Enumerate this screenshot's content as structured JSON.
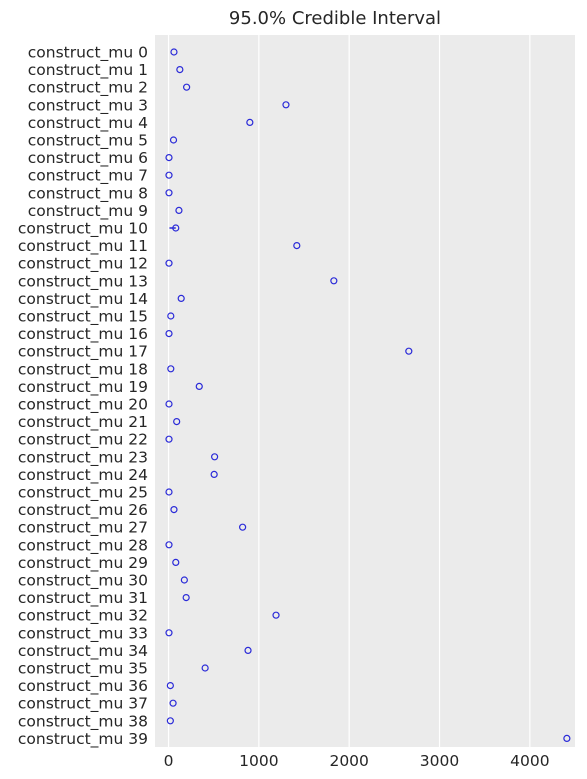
{
  "chart_data": {
    "type": "scatter",
    "title": "95.0% Credible Interval",
    "xlabel": "",
    "ylabel": "",
    "xlim": [
      -150,
      4500
    ],
    "xticks": [
      0,
      1000,
      2000,
      3000,
      4000
    ],
    "xtick_labels": [
      "0",
      "1000",
      "2000",
      "3000",
      "4000"
    ],
    "grid": true,
    "legend": "none",
    "colors": {
      "background": "#EBEBEB",
      "grid": "#FFFFFF",
      "marker": "#2A2AD8",
      "text": "#262626"
    },
    "labels": [
      "construct_mu 0",
      "construct_mu 1",
      "construct_mu 2",
      "construct_mu 3",
      "construct_mu 4",
      "construct_mu 5",
      "construct_mu 6",
      "construct_mu 7",
      "construct_mu 8",
      "construct_mu 9",
      "construct_mu 10",
      "construct_mu 11",
      "construct_mu 12",
      "construct_mu 13",
      "construct_mu 14",
      "construct_mu 15",
      "construct_mu 16",
      "construct_mu 17",
      "construct_mu 18",
      "construct_mu 19",
      "construct_mu 20",
      "construct_mu 21",
      "construct_mu 22",
      "construct_mu 23",
      "construct_mu 24",
      "construct_mu 25",
      "construct_mu 26",
      "construct_mu 27",
      "construct_mu 28",
      "construct_mu 29",
      "construct_mu 30",
      "construct_mu 31",
      "construct_mu 32",
      "construct_mu 33",
      "construct_mu 34",
      "construct_mu 35",
      "construct_mu 36",
      "construct_mu 37",
      "construct_mu 38",
      "construct_mu 39"
    ],
    "values": [
      60,
      125,
      200,
      1300,
      900,
      55,
      5,
      5,
      5,
      115,
      80,
      1420,
      5,
      1830,
      140,
      25,
      5,
      2660,
      25,
      340,
      5,
      90,
      5,
      510,
      505,
      5,
      60,
      820,
      5,
      80,
      175,
      195,
      1190,
      5,
      880,
      405,
      20,
      50,
      20,
      4410
    ],
    "interval_low": [
      60,
      125,
      200,
      1300,
      900,
      55,
      5,
      5,
      5,
      115,
      10,
      1420,
      5,
      1830,
      140,
      25,
      5,
      2660,
      25,
      340,
      5,
      90,
      5,
      510,
      505,
      5,
      60,
      820,
      5,
      80,
      175,
      195,
      1190,
      5,
      880,
      405,
      20,
      50,
      20,
      4410
    ],
    "interval_high": [
      60,
      125,
      200,
      1300,
      900,
      55,
      5,
      5,
      5,
      115,
      80,
      1420,
      5,
      1830,
      140,
      25,
      5,
      2660,
      25,
      340,
      5,
      90,
      5,
      510,
      505,
      5,
      60,
      820,
      5,
      80,
      175,
      195,
      1190,
      5,
      880,
      405,
      20,
      50,
      20,
      4410
    ]
  }
}
